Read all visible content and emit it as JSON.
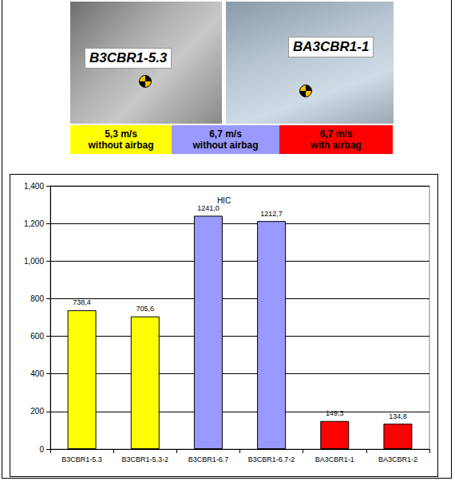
{
  "photos": [
    {
      "label": "B3CBR1-5.3"
    },
    {
      "label": "BA3CBR1-1"
    }
  ],
  "legend_boxes": [
    {
      "lines": [
        "5,3 m/s",
        "without airbag"
      ],
      "color": "#ffff00"
    },
    {
      "lines": [
        "6,7 m/s",
        "without airbag"
      ],
      "color": "#9999ff"
    },
    {
      "lines": [
        "6,7 m/s",
        "with airbag"
      ],
      "color": "#ff0000"
    }
  ],
  "chart_data": {
    "type": "bar",
    "title": "HIC",
    "categories": [
      "B3CBR1-5.3",
      "B3CBR1-5.3-2",
      "B3CBR1-6.7",
      "B3CBR1-6.7-2",
      "BA3CBR1-1",
      "BA3CBR1-2"
    ],
    "values": [
      738.4,
      705.6,
      1241.0,
      1212.7,
      149.3,
      134.8
    ],
    "value_labels": [
      "738,4",
      "705,6",
      "1241,0",
      "1212,7",
      "149,3",
      "134,8"
    ],
    "colors": [
      "#ffff00",
      "#ffff00",
      "#9999ff",
      "#9999ff",
      "#ff0000",
      "#ff0000"
    ],
    "ylim": [
      0,
      1400
    ],
    "yticks": [
      0,
      200,
      400,
      600,
      800,
      1000,
      1200,
      1400
    ],
    "grid": true,
    "data_labels": true
  }
}
